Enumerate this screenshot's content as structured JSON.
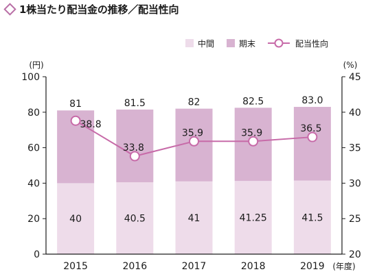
{
  "title": "1株当たり配当金の推移／配当性向",
  "colors": {
    "interim": "#eedcea",
    "final": "#d8b3d1",
    "payout_line": "#c76aa8",
    "title_diamond": "#b96fa6"
  },
  "chart_data": {
    "type": "bar",
    "stacked": true,
    "categories": [
      "2015",
      "2016",
      "2017",
      "2018",
      "2019"
    ],
    "x_unit": "(年度)",
    "series": [
      {
        "name": "中間",
        "values": [
          40,
          40.5,
          41,
          41.25,
          41.5
        ],
        "labels": [
          "40",
          "40.5",
          "41",
          "41.25",
          "41.5"
        ]
      },
      {
        "name": "期末",
        "values": [
          41,
          41,
          41,
          41.25,
          41.5
        ]
      }
    ],
    "totals": [
      81,
      81.5,
      82,
      82.5,
      83.0
    ],
    "total_labels": [
      "81",
      "81.5",
      "82",
      "82.5",
      "83.0"
    ],
    "line_series": {
      "name": "配当性向",
      "axis": "right",
      "values": [
        38.8,
        33.8,
        35.9,
        35.9,
        36.5
      ],
      "labels": [
        "38.8",
        "33.8",
        "35.9",
        "35.9",
        "36.5"
      ]
    },
    "left_axis": {
      "unit": "(円)",
      "min": 0,
      "max": 100,
      "ticks": [
        0,
        20,
        40,
        60,
        80,
        100
      ]
    },
    "right_axis": {
      "unit": "(%)",
      "min": 20,
      "max": 45,
      "ticks": [
        20,
        25,
        30,
        35,
        40,
        45
      ]
    },
    "legend": {
      "position": "top-right",
      "items": [
        "中間",
        "期末",
        "配当性向"
      ]
    },
    "grid": false
  }
}
